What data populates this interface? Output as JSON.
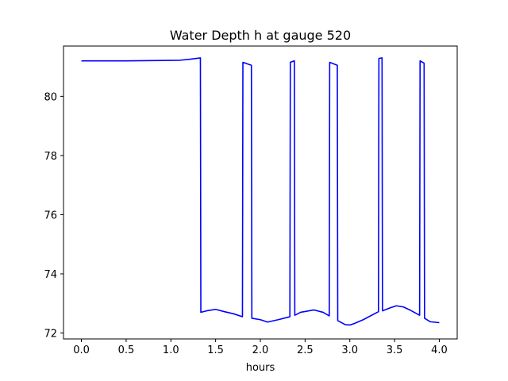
{
  "chart_data": {
    "type": "line",
    "title": "Water Depth h at gauge 520",
    "xlabel": "hours",
    "ylabel": "",
    "xlim": [
      -0.2,
      4.2
    ],
    "ylim": [
      71.8,
      81.7
    ],
    "xticks": [
      0.0,
      0.5,
      1.0,
      1.5,
      2.0,
      2.5,
      3.0,
      3.5,
      4.0
    ],
    "xtick_labels": [
      "0.0",
      "0.5",
      "1.0",
      "1.5",
      "2.0",
      "2.5",
      "3.0",
      "3.5",
      "4.0"
    ],
    "yticks": [
      72,
      74,
      76,
      78,
      80
    ],
    "ytick_labels": [
      "72",
      "74",
      "76",
      "78",
      "80"
    ],
    "grid": false,
    "series": [
      {
        "color": "#0000ff",
        "x": [
          0.0,
          0.5,
          1.1,
          1.2,
          1.33,
          1.335,
          1.4,
          1.5,
          1.6,
          1.7,
          1.8,
          1.805,
          1.9,
          1.905,
          2.0,
          2.08,
          2.2,
          2.33,
          2.335,
          2.38,
          2.385,
          2.45,
          2.6,
          2.7,
          2.77,
          2.775,
          2.86,
          2.865,
          2.95,
          3.0,
          3.05,
          3.15,
          3.32,
          3.325,
          3.36,
          3.365,
          3.45,
          3.52,
          3.6,
          3.67,
          3.78,
          3.785,
          3.83,
          3.835,
          3.9,
          4.0
        ],
        "y": [
          81.2,
          81.2,
          81.22,
          81.25,
          81.3,
          72.7,
          72.75,
          72.8,
          72.72,
          72.65,
          72.55,
          81.15,
          81.05,
          72.5,
          72.45,
          72.37,
          72.45,
          72.55,
          81.15,
          81.2,
          72.6,
          72.7,
          72.78,
          72.7,
          72.58,
          81.15,
          81.05,
          72.42,
          72.28,
          72.27,
          72.32,
          72.45,
          72.72,
          81.28,
          81.3,
          72.75,
          72.85,
          72.92,
          72.88,
          72.78,
          72.6,
          81.2,
          81.12,
          72.5,
          72.38,
          72.35
        ]
      }
    ]
  }
}
